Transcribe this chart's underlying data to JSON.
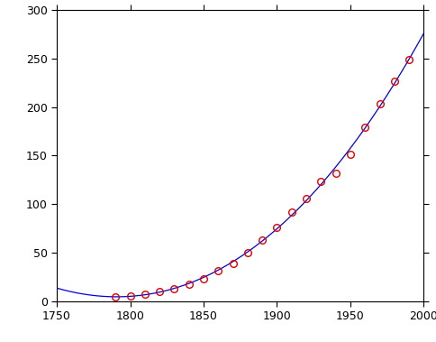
{
  "years": [
    1790,
    1800,
    1810,
    1820,
    1830,
    1840,
    1850,
    1860,
    1870,
    1880,
    1890,
    1900,
    1910,
    1920,
    1930,
    1940,
    1950,
    1960,
    1970,
    1980,
    1990
  ],
  "population": [
    3.9,
    5.3,
    7.2,
    9.6,
    12.9,
    17.1,
    23.2,
    31.4,
    38.6,
    50.2,
    63.0,
    76.2,
    92.2,
    106.0,
    123.2,
    132.2,
    151.3,
    179.3,
    203.3,
    226.5,
    248.7
  ],
  "line_color": "#0000dd",
  "marker_color": "#dd0000",
  "xlim": [
    1750,
    2000
  ],
  "ylim": [
    0,
    300
  ],
  "xticks": [
    1750,
    1800,
    1850,
    1900,
    1950,
    2000
  ],
  "yticks": [
    0,
    50,
    100,
    150,
    200,
    250,
    300
  ],
  "figsize": [
    4.85,
    3.79
  ],
  "dpi": 100
}
